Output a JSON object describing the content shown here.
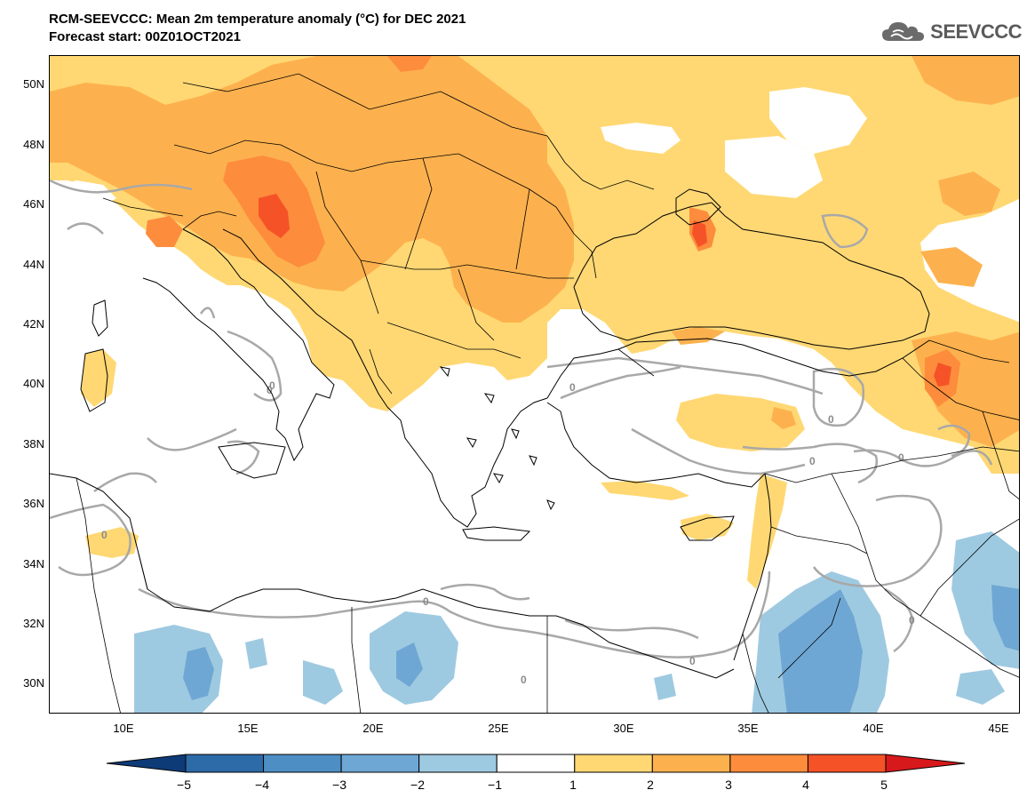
{
  "title": {
    "line1": "RCM-SEEVCCC: Mean 2m temperature anomaly (°C) for DEC 2021",
    "line2": "Forecast start: 00Z01OCT2021"
  },
  "logo": {
    "text": "SEEVCCC",
    "icon": "cloud-icon"
  },
  "axes": {
    "lat_labels": [
      "50N",
      "48N",
      "46N",
      "44N",
      "42N",
      "40N",
      "38N",
      "36N",
      "34N",
      "32N",
      "30N"
    ],
    "lon_labels": [
      "10E",
      "15E",
      "20E",
      "25E",
      "30E",
      "35E",
      "40E",
      "45E"
    ]
  },
  "contour_label": "0",
  "colorbar": {
    "labels": [
      "−5",
      "−4",
      "−3",
      "−2",
      "−1",
      "1",
      "2",
      "3",
      "4",
      "5"
    ],
    "colors": [
      "#0d3b78",
      "#2d6aa8",
      "#4d8ec4",
      "#6fa7d4",
      "#9ecae1",
      "#ffffff",
      "#ffd873",
      "#fdb14e",
      "#fd8c3c",
      "#f65227",
      "#d7191c"
    ]
  }
}
